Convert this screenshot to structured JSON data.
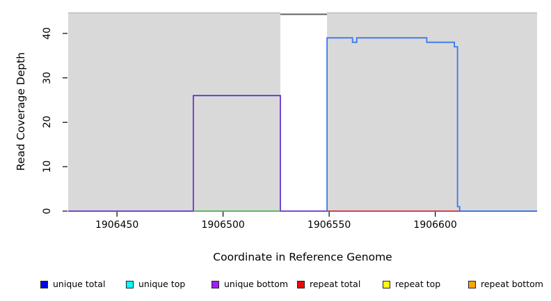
{
  "chart_data": {
    "type": "line",
    "title": "",
    "xlabel": "Coordinate in Reference Genome",
    "ylabel": "Read Coverage Depth",
    "xlim": [
      1906427,
      1906648
    ],
    "ylim": [
      0,
      44.7
    ],
    "xticks": [
      1906450,
      1906500,
      1906550,
      1906600
    ],
    "yticks": [
      0,
      10,
      20,
      30,
      40
    ],
    "grid": false,
    "background_bands": [
      {
        "name": "unique-region-left",
        "x0": 1906427,
        "x1": 1906527,
        "fill": "#d9d9d9",
        "edge": "#ababab"
      },
      {
        "name": "repeat-region-gap",
        "x0": 1906527,
        "x1": 1906549,
        "fill": "#ffffff",
        "edge": "none"
      },
      {
        "name": "unique-region-right",
        "x0": 1906549,
        "x1": 1906648,
        "fill": "#d9d9d9",
        "edge": "#ababab"
      }
    ],
    "clipped_total_line": {
      "x0": 1906527,
      "x1": 1906549,
      "value": 44.3,
      "color": "#606060"
    },
    "series": [
      {
        "name": "unique bottom",
        "color": "#6633cc",
        "points": [
          [
            1906427,
            0
          ],
          [
            1906486,
            0
          ],
          [
            1906486,
            26
          ],
          [
            1906527,
            26
          ],
          [
            1906527,
            0
          ],
          [
            1906648,
            0
          ]
        ]
      },
      {
        "name": "unique top",
        "color": "#4cb04c",
        "points": [
          [
            1906486,
            0
          ],
          [
            1906527,
            0
          ]
        ]
      },
      {
        "name": "repeat total",
        "color": "#e03c3c",
        "points": [
          [
            1906549,
            0
          ],
          [
            1906611,
            0
          ]
        ]
      },
      {
        "name": "unique total",
        "color": "#3a78ee",
        "points": [
          [
            1906549,
            0
          ],
          [
            1906549,
            39
          ],
          [
            1906561,
            39
          ],
          [
            1906561,
            38
          ],
          [
            1906563,
            38
          ],
          [
            1906563,
            39
          ],
          [
            1906596,
            39
          ],
          [
            1906596,
            38
          ],
          [
            1906609,
            38
          ],
          [
            1906609,
            37
          ],
          [
            1906610.5,
            37
          ],
          [
            1906610.5,
            1
          ],
          [
            1906611.5,
            1
          ],
          [
            1906611.5,
            0
          ],
          [
            1906648,
            0
          ]
        ]
      }
    ],
    "legend_position": "bottom"
  },
  "legend": {
    "items": [
      {
        "label": "unique total",
        "color": "#0000ff"
      },
      {
        "label": "unique top",
        "color": "#00ffff"
      },
      {
        "label": "unique bottom",
        "color": "#a020f0"
      },
      {
        "label": "repeat total",
        "color": "#ff0000"
      },
      {
        "label": "repeat top",
        "color": "#ffff00"
      },
      {
        "label": "repeat bottom",
        "color": "#ffa500"
      }
    ]
  },
  "axes": {
    "xlabel": "Coordinate in Reference Genome",
    "ylabel": "Read Coverage Depth"
  }
}
